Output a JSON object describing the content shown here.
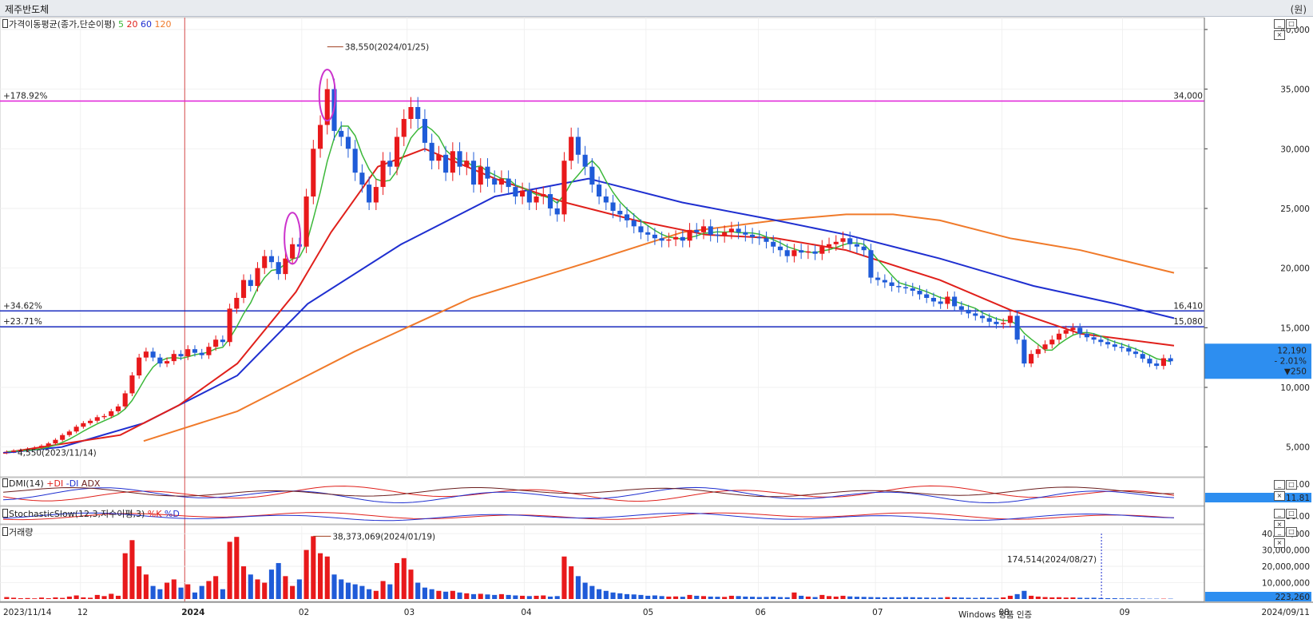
{
  "window": {
    "title": "제주반도체",
    "right_label": "(원)"
  },
  "colors": {
    "up": "#e8191b",
    "down": "#1f5bd8",
    "ma5": "#3cb83a",
    "ma20": "#e0201b",
    "ma60": "#1f2fd0",
    "ma120": "#f07a2a",
    "hline_pink": "#e020d8",
    "hline_blue": "#1c2fc0",
    "vline": "#cc2222",
    "highlight": "#cc33cc",
    "price_tag": "#2d8ef0"
  },
  "panels": {
    "price": {
      "label": "가격이동평균(종가,단순이평)",
      "ma_labels": [
        "5",
        "20",
        "60",
        "120"
      ]
    },
    "dmi": {
      "label": "DMI(14)",
      "lines": [
        "+DI",
        "-DI",
        "ADX"
      ],
      "axis": [
        "50.00",
        "11.81"
      ]
    },
    "stoch": {
      "label": "StochasticSlow(12,3,지수이평,3)",
      "lines": [
        "%K",
        "%D"
      ],
      "axis": [
        "50.00"
      ]
    },
    "volume": {
      "label": "거래량"
    }
  },
  "annotations": {
    "high": "38,550(2024/01/25)",
    "low": "4,550(2023/11/14)",
    "vol_max": "38,373,069(2024/01/19)",
    "vol_mark": "174,514(2024/08/27)",
    "pct_top": "+178.92%",
    "pct_mid1": "+34.62%",
    "pct_mid2": "+23.71%",
    "level_top": "34,000",
    "level_mid1": "16,410",
    "level_mid2": "15,080"
  },
  "current": {
    "price": "12,190",
    "change_pct": "- 2.01%",
    "change": "▼250",
    "volume": "223,260"
  },
  "watermark": "Windows 정품 인증",
  "chart_data": {
    "type": "candlestick",
    "y_ticks": [
      "40,000",
      "35,000",
      "30,000",
      "25,000",
      "20,000",
      "15,000",
      "10,000",
      "5,000"
    ],
    "y_range": [
      2500,
      41000
    ],
    "volume_ticks": [
      "40,000,000",
      "30,000,000",
      "20,000,000",
      "10,000,000"
    ],
    "x_labels": [
      "2023/11/14",
      "12",
      "2024",
      "02",
      "03",
      "04",
      "05",
      "06",
      "07",
      "08",
      "09",
      "2024/09/11"
    ],
    "resistance_levels": [
      34000,
      16410,
      15080
    ],
    "closes": [
      4600,
      4700,
      4750,
      4850,
      4950,
      5100,
      5300,
      5600,
      6000,
      6300,
      6700,
      7000,
      7200,
      7500,
      7600,
      8000,
      8400,
      9500,
      11000,
      12500,
      13000,
      12500,
      12000,
      12200,
      12800,
      12600,
      13200,
      12900,
      12700,
      13400,
      14000,
      13800,
      16600,
      17500,
      19000,
      18500,
      20000,
      21000,
      20500,
      19500,
      20800,
      22000,
      21800,
      26000,
      30000,
      32000,
      35000,
      31500,
      31000,
      30000,
      28000,
      27000,
      25500,
      26800,
      29000,
      28500,
      31000,
      32500,
      33500,
      32500,
      30500,
      29000,
      29500,
      28000,
      29800,
      28500,
      29000,
      27000,
      28500,
      27500,
      27000,
      27500,
      26800,
      26000,
      26500,
      25500,
      26000,
      26200,
      25000,
      24500,
      29000,
      31000,
      29500,
      28500,
      27000,
      26000,
      25500,
      24800,
      24500,
      24000,
      23500,
      23000,
      22800,
      22500,
      22300,
      22400,
      22600,
      22300,
      23200,
      23000,
      23500,
      22800,
      22700,
      23000,
      23300,
      23000,
      22800,
      22600,
      22500,
      22200,
      21800,
      21500,
      21000,
      21500,
      21300,
      21400,
      21200,
      21800,
      22000,
      22200,
      22500,
      22000,
      21800,
      21500,
      19200,
      19000,
      18800,
      18500,
      18400,
      18300,
      18100,
      17800,
      17500,
      17200,
      17000,
      17600,
      16800,
      16500,
      16200,
      16000,
      15800,
      15500,
      15300,
      15400,
      16000,
      14000,
      12000,
      12800,
      13200,
      13600,
      14000,
      14500,
      14800,
      15000,
      14500,
      14200,
      14000,
      13800,
      13600,
      13400,
      13300,
      13000,
      12800,
      12400,
      12000,
      11800,
      12440,
      12190
    ],
    "ma5": [
      4600,
      4700,
      4750,
      4850,
      4950,
      5100,
      5300,
      5600,
      6000,
      6300,
      6700,
      7000,
      7200,
      7500,
      7600,
      8000,
      8400,
      9500,
      11000,
      12500,
      13000,
      12500,
      12000,
      12200,
      12800,
      12600,
      13200,
      12900,
      12700,
      13400,
      14000,
      13800,
      16600,
      17500,
      19000,
      18500,
      20000,
      21000,
      20500,
      19500,
      20800,
      22000,
      21800,
      26000,
      30000,
      32000,
      35000,
      31500,
      31000,
      30000,
      28000,
      27000,
      25500,
      26800,
      29000,
      28500,
      31000,
      32500,
      33500,
      32500,
      30500,
      29000,
      29500,
      28000,
      29800,
      28500,
      29000,
      27000,
      28500,
      27500,
      27000,
      27500,
      26800,
      26000,
      26500,
      25500,
      26000,
      26200,
      25000,
      24500,
      29000,
      31000,
      29500,
      28500,
      27000,
      26000,
      25500,
      24800,
      24500,
      24000,
      23500,
      23000,
      22800,
      22500,
      22300,
      22400,
      22600,
      22300,
      23200,
      23000,
      23500,
      22800,
      22700,
      23000,
      23300,
      23000,
      22800,
      22600,
      22500,
      22200,
      21800,
      21500,
      21000,
      21500,
      21300,
      21400,
      21200,
      21800,
      22000,
      22200,
      22500,
      22000,
      21800,
      21500,
      19200,
      19000,
      18800,
      18500,
      18400,
      18300,
      18100,
      17800,
      17500,
      17200,
      17000,
      17600,
      16800,
      16500,
      16200,
      16000,
      15800,
      15500,
      15300,
      15400,
      16000,
      14000,
      12000,
      12800,
      13200,
      13600,
      14000,
      14500,
      14800,
      15000,
      14500,
      14200,
      14000,
      13800,
      13600,
      13400,
      13300,
      13000,
      12800,
      12400,
      12000,
      11800,
      12440,
      12190
    ],
    "ma20": [
      [
        0,
        4500
      ],
      [
        0.1,
        6000
      ],
      [
        0.15,
        8500
      ],
      [
        0.2,
        12000
      ],
      [
        0.25,
        18000
      ],
      [
        0.28,
        23000
      ],
      [
        0.32,
        28500
      ],
      [
        0.36,
        30000
      ],
      [
        0.42,
        27500
      ],
      [
        0.48,
        25500
      ],
      [
        0.54,
        24000
      ],
      [
        0.6,
        22800
      ],
      [
        0.66,
        22500
      ],
      [
        0.72,
        21500
      ],
      [
        0.8,
        19000
      ],
      [
        0.86,
        16500
      ],
      [
        0.92,
        14500
      ],
      [
        1,
        13500
      ]
    ],
    "ma60": [
      [
        0,
        4500
      ],
      [
        0.05,
        5000
      ],
      [
        0.12,
        7000
      ],
      [
        0.2,
        11000
      ],
      [
        0.26,
        17000
      ],
      [
        0.34,
        22000
      ],
      [
        0.42,
        26000
      ],
      [
        0.5,
        27500
      ],
      [
        0.58,
        25500
      ],
      [
        0.66,
        24000
      ],
      [
        0.72,
        22800
      ],
      [
        0.8,
        20800
      ],
      [
        0.88,
        18500
      ],
      [
        0.95,
        17000
      ],
      [
        1,
        15800
      ]
    ],
    "ma120": [
      [
        0.12,
        5500
      ],
      [
        0.2,
        8000
      ],
      [
        0.3,
        13000
      ],
      [
        0.4,
        17500
      ],
      [
        0.5,
        20500
      ],
      [
        0.58,
        23000
      ],
      [
        0.66,
        24000
      ],
      [
        0.72,
        24500
      ],
      [
        0.76,
        24500
      ],
      [
        0.8,
        24000
      ],
      [
        0.86,
        22500
      ],
      [
        0.92,
        21500
      ],
      [
        1,
        19600
      ]
    ],
    "volume": [
      1.2,
      0.8,
      0.5,
      0.6,
      0.4,
      0.9,
      0.5,
      1.0,
      0.7,
      1.5,
      2.2,
      1.0,
      0.8,
      2.5,
      1.8,
      3.2,
      2.0,
      28.0,
      36.0,
      20.0,
      15.0,
      8.0,
      6.0,
      10.0,
      12.0,
      7.0,
      9.0,
      4.0,
      8.0,
      11.0,
      14.0,
      6.0,
      35.0,
      38.0,
      20.0,
      15.0,
      12.0,
      10.0,
      18.0,
      22.0,
      14.0,
      8.0,
      12.0,
      30.0,
      38.4,
      28.0,
      26.0,
      15.0,
      12.0,
      10.0,
      9.0,
      8.0,
      6.0,
      5.0,
      11.0,
      9.0,
      22.0,
      25.0,
      18.0,
      10.0,
      7.0,
      6.0,
      5.0,
      4.5,
      5.0,
      4.0,
      3.5,
      3.0,
      3.2,
      2.8,
      2.5,
      3.0,
      2.5,
      2.2,
      2.0,
      1.8,
      2.0,
      2.2,
      1.5,
      1.8,
      26.0,
      20.0,
      14.0,
      10.0,
      8.0,
      6.0,
      5.0,
      4.0,
      3.5,
      3.0,
      2.8,
      2.5,
      2.0,
      2.2,
      1.8,
      1.5,
      1.6,
      1.4,
      2.5,
      2.0,
      1.8,
      1.5,
      1.4,
      1.3,
      2.0,
      1.8,
      1.5,
      1.4,
      1.2,
      1.3,
      1.5,
      1.2,
      1.1,
      4.0,
      2.0,
      1.5,
      1.2,
      2.5,
      1.8,
      1.5,
      2.0,
      1.6,
      1.4,
      1.3,
      1.2,
      1.1,
      1.0,
      1.1,
      1.0,
      1.2,
      1.1,
      1.0,
      0.9,
      0.8,
      0.9,
      1.2,
      1.0,
      0.9,
      0.8,
      0.7,
      0.9,
      0.8,
      0.7,
      1.0,
      2.0,
      3.0,
      5.0,
      2.0,
      1.5,
      1.2,
      1.0,
      1.1,
      0.9,
      1.0,
      0.8,
      0.7,
      0.8,
      0.6,
      0.5,
      0.5,
      0.4,
      0.4,
      0.3,
      0.3,
      0.2,
      0.2,
      0.2,
      0.2
    ]
  }
}
